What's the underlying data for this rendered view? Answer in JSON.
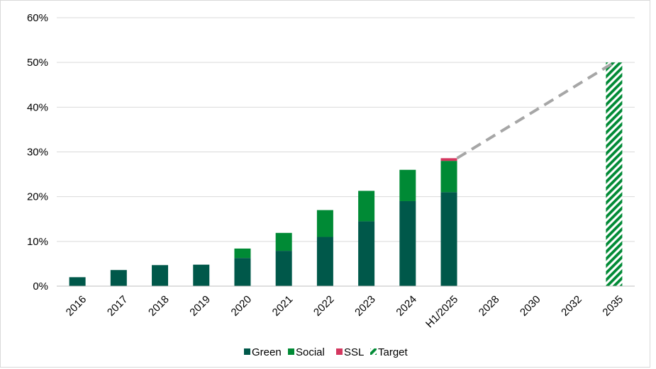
{
  "chart_data": {
    "type": "bar",
    "stacked": true,
    "categories": [
      "2016",
      "2017",
      "2018",
      "2019",
      "2020",
      "2021",
      "2022",
      "2023",
      "2024",
      "H1/2025",
      "2028",
      "2030",
      "2032",
      "2035"
    ],
    "series": [
      {
        "name": "Green",
        "color": "#00584a",
        "values": [
          2,
          3.6,
          4.7,
          4.8,
          6.3,
          7.9,
          11,
          14.5,
          19,
          21,
          null,
          null,
          null,
          null
        ]
      },
      {
        "name": "Social",
        "color": "#008a35",
        "values": [
          0,
          0,
          0,
          0,
          2.1,
          4,
          6,
          6.8,
          7,
          7,
          null,
          null,
          null,
          null
        ]
      },
      {
        "name": "SSL",
        "color": "#d4375f",
        "values": [
          0,
          0,
          0,
          0,
          0,
          0,
          0,
          0,
          0,
          0.6,
          null,
          null,
          null,
          null
        ]
      },
      {
        "name": "Target",
        "color": "#008a35",
        "pattern": "diagonal-stripes",
        "values": [
          null,
          null,
          null,
          null,
          null,
          null,
          null,
          null,
          null,
          null,
          null,
          null,
          null,
          50
        ]
      }
    ],
    "trend_line": {
      "style": "dashed",
      "color": "#a6a6a6",
      "from": {
        "category": "H1/2025",
        "value": 28.6
      },
      "to": {
        "category": "2035",
        "value": 50
      }
    },
    "y_ticks": [
      "0%",
      "10%",
      "20%",
      "30%",
      "40%",
      "50%",
      "60%"
    ],
    "ylim": [
      0,
      60
    ],
    "grid": true,
    "legend_position": "bottom-center",
    "title": "",
    "xlabel": "",
    "ylabel": ""
  }
}
